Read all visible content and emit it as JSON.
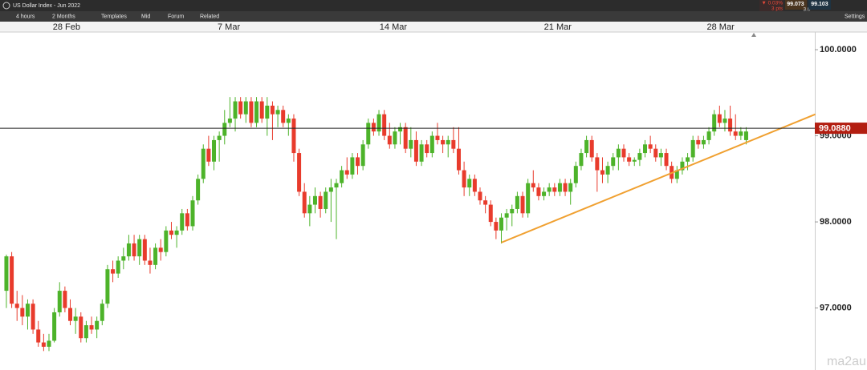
{
  "toolbar": {
    "instrument": "US Dollar Index - Jun 2022",
    "interval": "4 hours",
    "range": "2 Months",
    "templates": "Templates",
    "mid": "Mid",
    "forum": "Forum",
    "related": "Related",
    "change": "▼ 0.03%",
    "points": "3 pts",
    "sell": "99.073",
    "spread": "3.0",
    "buy": "99.103",
    "settings": "Settings"
  },
  "watermark": "ma2au",
  "chart_data": {
    "type": "candlestick",
    "up_color": "#4db32a",
    "down_color": "#e83b2c",
    "xlim": [
      -1.2,
      151.9
    ],
    "xticks": [
      {
        "value": 11.3,
        "label": "28 Feb"
      },
      {
        "value": 41.8,
        "label": "7 Mar"
      },
      {
        "value": 72.7,
        "label": "14 Mar"
      },
      {
        "value": 103.6,
        "label": "21 Mar"
      },
      {
        "value": 134.2,
        "label": "28 Mar"
      }
    ],
    "ylim": [
      96.28,
      100.205
    ],
    "yticks": [
      {
        "value": 97,
        "label": "97.0000"
      },
      {
        "value": 98,
        "label": "98.0000"
      },
      {
        "value": 99,
        "label": "99.0000"
      },
      {
        "value": 100,
        "label": "100.0000"
      }
    ],
    "current_price": {
      "value": 99.088,
      "label": "99.0880",
      "color": "#b31e11"
    },
    "trendline": {
      "x": [
        93,
        152
      ],
      "y": [
        97.76,
        99.25
      ],
      "color": "#f0a030"
    },
    "ohlc": [
      [
        97.2,
        97.62,
        97.0,
        97.6
      ],
      [
        97.6,
        97.65,
        97.0,
        97.05
      ],
      [
        97.05,
        97.2,
        96.85,
        97.0
      ],
      [
        97.0,
        97.15,
        96.8,
        96.9
      ],
      [
        96.9,
        97.1,
        96.75,
        97.05
      ],
      [
        97.05,
        97.1,
        96.7,
        96.75
      ],
      [
        96.75,
        96.85,
        96.55,
        96.6
      ],
      [
        96.6,
        96.7,
        96.5,
        96.55
      ],
      [
        96.55,
        96.7,
        96.5,
        96.62
      ],
      [
        96.62,
        97.0,
        96.6,
        96.95
      ],
      [
        96.95,
        97.3,
        96.9,
        97.2
      ],
      [
        97.2,
        97.25,
        96.95,
        97.0
      ],
      [
        97.0,
        97.1,
        96.8,
        96.85
      ],
      [
        96.85,
        97.0,
        96.7,
        96.9
      ],
      [
        96.9,
        96.95,
        96.6,
        96.65
      ],
      [
        96.65,
        96.85,
        96.6,
        96.8
      ],
      [
        96.8,
        96.9,
        96.7,
        96.75
      ],
      [
        96.75,
        96.9,
        96.65,
        96.85
      ],
      [
        96.85,
        97.1,
        96.8,
        97.05
      ],
      [
        97.05,
        97.5,
        97.0,
        97.45
      ],
      [
        97.45,
        97.55,
        97.3,
        97.4
      ],
      [
        97.4,
        97.6,
        97.35,
        97.55
      ],
      [
        97.55,
        97.7,
        97.45,
        97.6
      ],
      [
        97.6,
        97.85,
        97.55,
        97.75
      ],
      [
        97.75,
        97.85,
        97.55,
        97.6
      ],
      [
        97.6,
        97.85,
        97.5,
        97.8
      ],
      [
        97.8,
        97.85,
        97.5,
        97.55
      ],
      [
        97.55,
        97.7,
        97.4,
        97.5
      ],
      [
        97.5,
        97.75,
        97.45,
        97.7
      ],
      [
        97.7,
        97.8,
        97.55,
        97.65
      ],
      [
        97.65,
        97.95,
        97.6,
        97.9
      ],
      [
        97.9,
        98.0,
        97.8,
        97.85
      ],
      [
        97.85,
        97.95,
        97.7,
        97.9
      ],
      [
        97.9,
        98.15,
        97.85,
        98.1
      ],
      [
        98.1,
        98.15,
        97.9,
        97.95
      ],
      [
        97.95,
        98.3,
        97.9,
        98.25
      ],
      [
        98.25,
        98.55,
        98.2,
        98.5
      ],
      [
        98.5,
        98.9,
        98.45,
        98.85
      ],
      [
        98.85,
        99.0,
        98.65,
        98.7
      ],
      [
        98.7,
        99.0,
        98.6,
        98.95
      ],
      [
        98.95,
        99.05,
        98.7,
        99.0
      ],
      [
        99.0,
        99.3,
        98.9,
        99.15
      ],
      [
        99.15,
        99.45,
        99.1,
        99.2
      ],
      [
        99.2,
        99.45,
        99.05,
        99.4
      ],
      [
        99.4,
        99.45,
        99.2,
        99.25
      ],
      [
        99.25,
        99.45,
        99.15,
        99.4
      ],
      [
        99.4,
        99.45,
        99.1,
        99.15
      ],
      [
        99.15,
        99.45,
        99.1,
        99.4
      ],
      [
        99.4,
        99.45,
        99.15,
        99.2
      ],
      [
        99.2,
        99.45,
        99.0,
        99.35
      ],
      [
        99.35,
        99.4,
        98.95,
        99.25
      ],
      [
        99.25,
        99.35,
        99.1,
        99.3
      ],
      [
        99.3,
        99.35,
        99.1,
        99.15
      ],
      [
        99.15,
        99.25,
        99.0,
        99.2
      ],
      [
        99.2,
        99.25,
        98.7,
        98.8
      ],
      [
        98.8,
        98.85,
        98.3,
        98.35
      ],
      [
        98.35,
        98.45,
        98.05,
        98.1
      ],
      [
        98.1,
        98.3,
        97.95,
        98.2
      ],
      [
        98.2,
        98.4,
        98.1,
        98.3
      ],
      [
        98.3,
        98.35,
        98.05,
        98.15
      ],
      [
        98.15,
        98.4,
        98.1,
        98.35
      ],
      [
        98.35,
        98.5,
        98.0,
        98.4
      ],
      [
        98.4,
        98.5,
        97.8,
        98.45
      ],
      [
        98.45,
        98.65,
        98.4,
        98.6
      ],
      [
        98.6,
        98.75,
        98.5,
        98.55
      ],
      [
        98.55,
        98.8,
        98.5,
        98.75
      ],
      [
        98.75,
        98.8,
        98.55,
        98.65
      ],
      [
        98.65,
        98.95,
        98.6,
        98.9
      ],
      [
        98.9,
        99.2,
        98.85,
        99.15
      ],
      [
        99.15,
        99.2,
        99.0,
        99.05
      ],
      [
        99.05,
        99.3,
        99.0,
        99.25
      ],
      [
        99.25,
        99.3,
        98.95,
        99.0
      ],
      [
        99.0,
        99.15,
        98.85,
        98.9
      ],
      [
        98.9,
        99.1,
        98.85,
        99.05
      ],
      [
        99.05,
        99.15,
        98.9,
        99.1
      ],
      [
        99.1,
        99.15,
        98.8,
        98.85
      ],
      [
        98.85,
        99.1,
        98.75,
        98.95
      ],
      [
        98.95,
        99.05,
        98.65,
        98.7
      ],
      [
        98.7,
        98.95,
        98.65,
        98.9
      ],
      [
        98.9,
        98.95,
        98.75,
        98.8
      ],
      [
        98.8,
        99.05,
        98.75,
        99.0
      ],
      [
        99.0,
        99.15,
        98.9,
        98.95
      ],
      [
        98.95,
        99.0,
        98.8,
        98.9
      ],
      [
        98.9,
        99.0,
        98.75,
        98.95
      ],
      [
        98.95,
        99.1,
        98.8,
        98.85
      ],
      [
        98.85,
        99.1,
        98.55,
        98.6
      ],
      [
        98.6,
        98.7,
        98.3,
        98.4
      ],
      [
        98.4,
        98.55,
        98.3,
        98.5
      ],
      [
        98.5,
        98.55,
        98.3,
        98.35
      ],
      [
        98.35,
        98.4,
        98.2,
        98.25
      ],
      [
        98.25,
        98.3,
        98.1,
        98.2
      ],
      [
        98.2,
        98.25,
        97.95,
        98.0
      ],
      [
        98.0,
        98.05,
        97.8,
        97.9
      ],
      [
        97.9,
        98.1,
        97.75,
        98.05
      ],
      [
        98.05,
        98.15,
        97.9,
        98.1
      ],
      [
        98.1,
        98.2,
        97.95,
        98.15
      ],
      [
        98.15,
        98.35,
        98.1,
        98.3
      ],
      [
        98.3,
        98.35,
        98.05,
        98.1
      ],
      [
        98.1,
        98.5,
        98.05,
        98.45
      ],
      [
        98.45,
        98.6,
        98.35,
        98.4
      ],
      [
        98.4,
        98.45,
        98.25,
        98.3
      ],
      [
        98.3,
        98.4,
        98.25,
        98.35
      ],
      [
        98.35,
        98.45,
        98.3,
        98.4
      ],
      [
        98.4,
        98.45,
        98.3,
        98.35
      ],
      [
        98.35,
        98.5,
        98.3,
        98.45
      ],
      [
        98.45,
        98.5,
        98.3,
        98.35
      ],
      [
        98.35,
        98.5,
        98.2,
        98.45
      ],
      [
        98.45,
        98.7,
        98.4,
        98.65
      ],
      [
        98.65,
        98.85,
        98.6,
        98.8
      ],
      [
        98.8,
        99.0,
        98.75,
        98.95
      ],
      [
        98.95,
        99.0,
        98.7,
        98.75
      ],
      [
        98.75,
        98.8,
        98.35,
        98.6
      ],
      [
        98.6,
        98.75,
        98.45,
        98.55
      ],
      [
        98.55,
        98.7,
        98.45,
        98.65
      ],
      [
        98.65,
        98.8,
        98.6,
        98.75
      ],
      [
        98.75,
        98.9,
        98.6,
        98.85
      ],
      [
        98.85,
        98.9,
        98.7,
        98.75
      ],
      [
        98.75,
        98.8,
        98.65,
        98.7
      ],
      [
        98.7,
        98.75,
        98.65,
        98.72
      ],
      [
        98.72,
        98.85,
        98.65,
        98.8
      ],
      [
        98.8,
        98.95,
        98.75,
        98.9
      ],
      [
        98.9,
        99.0,
        98.8,
        98.85
      ],
      [
        98.85,
        98.9,
        98.7,
        98.75
      ],
      [
        98.75,
        98.85,
        98.65,
        98.8
      ],
      [
        98.8,
        98.85,
        98.6,
        98.65
      ],
      [
        98.65,
        98.7,
        98.45,
        98.5
      ],
      [
        98.5,
        98.65,
        98.45,
        98.6
      ],
      [
        98.6,
        98.75,
        98.55,
        98.7
      ],
      [
        98.7,
        98.8,
        98.6,
        98.75
      ],
      [
        98.75,
        99.0,
        98.7,
        98.95
      ],
      [
        98.95,
        99.0,
        98.85,
        98.9
      ],
      [
        98.9,
        99.0,
        98.85,
        98.95
      ],
      [
        98.95,
        99.1,
        98.9,
        99.05
      ],
      [
        99.05,
        99.3,
        99.0,
        99.25
      ],
      [
        99.25,
        99.35,
        99.1,
        99.15
      ],
      [
        99.15,
        99.3,
        99.05,
        99.2
      ],
      [
        99.2,
        99.35,
        99.0,
        99.05
      ],
      [
        99.05,
        99.25,
        98.95,
        99.0
      ],
      [
        99.0,
        99.1,
        98.95,
        99.05
      ],
      [
        98.95,
        99.1,
        98.9,
        99.05
      ]
    ]
  }
}
